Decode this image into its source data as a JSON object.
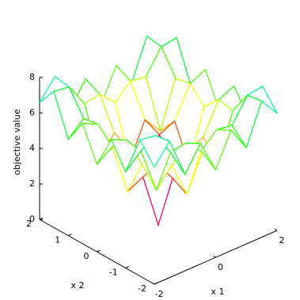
{
  "chart_data": {
    "type": "surface3d",
    "zlabel": "objective value",
    "xlabel": "x 1",
    "ylabel": "x 2",
    "x": [
      -2,
      -1.5,
      -1,
      -0.5,
      0,
      0.5,
      1,
      1.5,
      2
    ],
    "y": [
      -2,
      -1.5,
      -1,
      -0.5,
      0,
      0.5,
      1,
      1.5,
      2
    ],
    "z": [
      [
        6.59,
        7.67,
        5.42,
        6.78,
        4.93,
        6.78,
        5.42,
        7.67,
        6.59
      ],
      [
        7.67,
        7.53,
        6.22,
        6.36,
        5.54,
        6.36,
        6.22,
        7.53,
        7.67
      ],
      [
        5.42,
        6.22,
        3.63,
        4.64,
        2.64,
        4.64,
        3.63,
        6.22,
        5.42
      ],
      [
        6.78,
        6.36,
        4.64,
        4.25,
        3.09,
        4.25,
        4.64,
        6.36,
        6.78
      ],
      [
        4.93,
        5.54,
        2.64,
        3.09,
        0,
        3.09,
        2.64,
        5.54,
        4.93
      ],
      [
        6.78,
        6.36,
        4.64,
        4.25,
        3.09,
        4.25,
        4.64,
        6.36,
        6.78
      ],
      [
        5.42,
        6.22,
        3.63,
        4.64,
        2.64,
        4.64,
        3.63,
        6.22,
        5.42
      ],
      [
        7.67,
        7.53,
        6.22,
        6.36,
        5.54,
        6.36,
        6.22,
        7.53,
        7.67
      ],
      [
        6.59,
        7.67,
        5.42,
        6.78,
        4.93,
        6.78,
        5.42,
        7.67,
        6.59
      ]
    ],
    "xlim": [
      -2,
      2
    ],
    "ylim": [
      -2,
      2
    ],
    "zlim": [
      0,
      8
    ],
    "xticks": [
      -2,
      0,
      2
    ],
    "yticks": [
      -2,
      -1,
      0,
      1,
      2
    ],
    "zticks": [
      0,
      2,
      4,
      6,
      8
    ],
    "colormap": [
      "#0000ff",
      "#ff00ff",
      "#ff0000",
      "#ffff00",
      "#00ff00",
      "#00ffff"
    ]
  }
}
